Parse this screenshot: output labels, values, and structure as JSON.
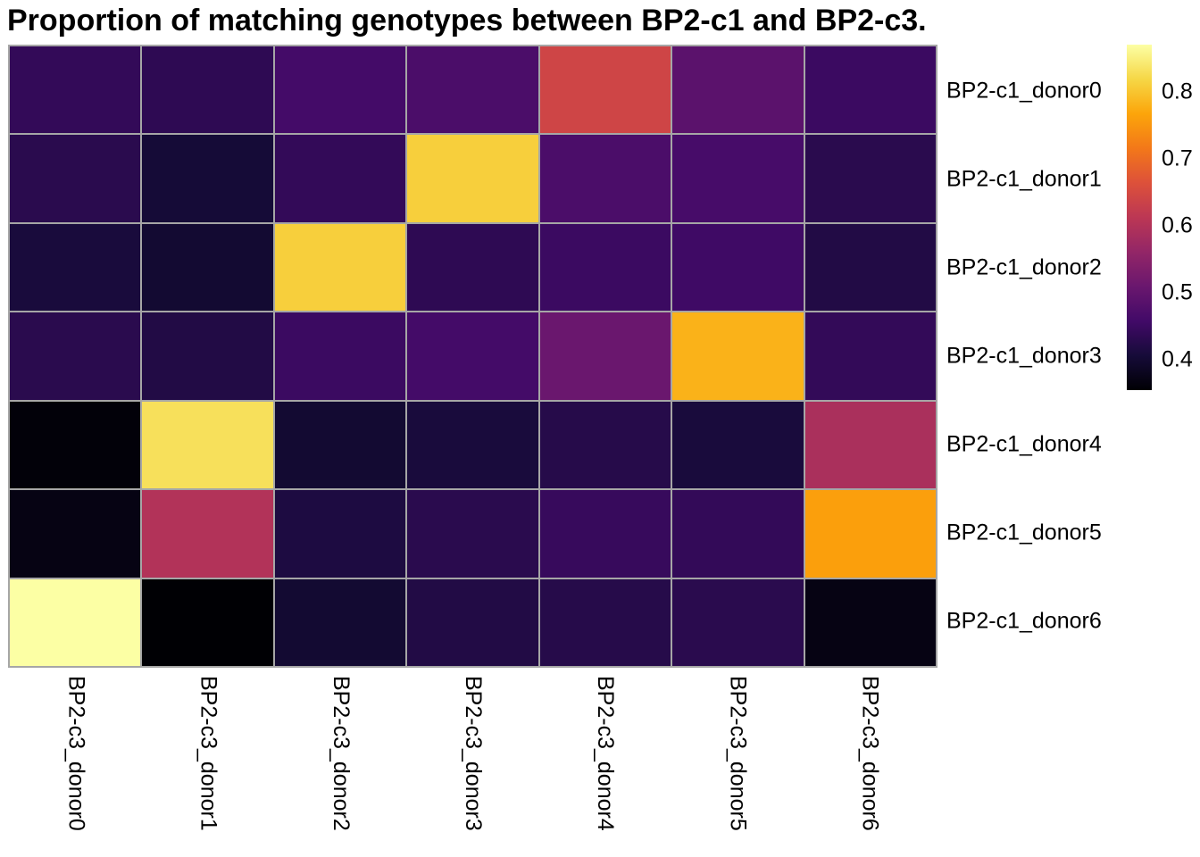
{
  "title": "Proportion of matching genotypes between BP2-c1 and BP2-c3.",
  "chart_data": {
    "type": "heatmap",
    "title": "Proportion of matching genotypes between BP2-c1 and BP2-c3.",
    "rows": [
      "BP2-c1_donor0",
      "BP2-c1_donor1",
      "BP2-c1_donor2",
      "BP2-c1_donor3",
      "BP2-c1_donor4",
      "BP2-c1_donor5",
      "BP2-c1_donor6"
    ],
    "columns": [
      "BP2-c3_donor0",
      "BP2-c3_donor1",
      "BP2-c3_donor2",
      "BP2-c3_donor3",
      "BP2-c3_donor4",
      "BP2-c3_donor5",
      "BP2-c3_donor6"
    ],
    "values": [
      [
        0.44,
        0.435,
        0.46,
        0.47,
        0.64,
        0.49,
        0.45
      ],
      [
        0.43,
        0.405,
        0.44,
        0.81,
        0.47,
        0.465,
        0.43
      ],
      [
        0.41,
        0.4,
        0.81,
        0.435,
        0.45,
        0.455,
        0.42
      ],
      [
        0.43,
        0.42,
        0.45,
        0.46,
        0.51,
        0.78,
        0.44
      ],
      [
        0.36,
        0.83,
        0.4,
        0.41,
        0.425,
        0.41,
        0.59
      ],
      [
        0.37,
        0.6,
        0.415,
        0.43,
        0.445,
        0.44,
        0.76
      ],
      [
        0.87,
        0.355,
        0.4,
        0.42,
        0.425,
        0.43,
        0.37
      ]
    ],
    "vmin": 0.355,
    "vmax": 0.87,
    "colormap": "inferno",
    "colormap_stops": [
      "#000004",
      "#160b39",
      "#420a68",
      "#6a176e",
      "#932667",
      "#bc3754",
      "#dd513a",
      "#f37819",
      "#fca50a",
      "#f6d746",
      "#fcffa4"
    ],
    "colorbar_ticks": [
      {
        "label": "0.8",
        "value": 0.8
      },
      {
        "label": "0.7",
        "value": 0.7
      },
      {
        "label": "0.6",
        "value": 0.6
      },
      {
        "label": "0.5",
        "value": 0.5
      },
      {
        "label": "0.4",
        "value": 0.4
      }
    ],
    "grid_line_color": "#a6a6a6",
    "legend_position": "right",
    "background": "#ffffff"
  }
}
